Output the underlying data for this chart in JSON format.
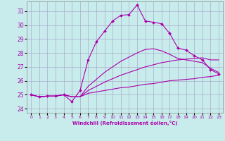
{
  "xlabel": "Windchill (Refroidissement éolien,°C)",
  "background_color": "#c8ecec",
  "grid_color": "#aaaacc",
  "line_color": "#aa00aa",
  "xlim": [
    -0.5,
    23.5
  ],
  "ylim": [
    23.7,
    31.7
  ],
  "yticks": [
    24,
    25,
    26,
    27,
    28,
    29,
    30,
    31
  ],
  "xticks": [
    0,
    1,
    2,
    3,
    4,
    5,
    6,
    7,
    8,
    9,
    10,
    11,
    12,
    13,
    14,
    15,
    16,
    17,
    18,
    19,
    20,
    21,
    22,
    23
  ],
  "series": [
    {
      "x": [
        0,
        1,
        2,
        3,
        4,
        5,
        6,
        7,
        8,
        9,
        10,
        11,
        12,
        13,
        14,
        15,
        16,
        17,
        18,
        19,
        20,
        21,
        22,
        23
      ],
      "y": [
        25.0,
        24.85,
        24.9,
        24.9,
        25.0,
        24.85,
        24.85,
        25.1,
        25.2,
        25.3,
        25.4,
        25.5,
        25.55,
        25.65,
        25.75,
        25.8,
        25.9,
        26.0,
        26.05,
        26.1,
        26.15,
        26.25,
        26.3,
        26.4
      ],
      "has_markers": false,
      "lw": 0.8
    },
    {
      "x": [
        0,
        1,
        2,
        3,
        4,
        5,
        6,
        7,
        8,
        9,
        10,
        11,
        12,
        13,
        14,
        15,
        16,
        17,
        18,
        19,
        20,
        21,
        22,
        23
      ],
      "y": [
        25.0,
        24.85,
        24.9,
        24.9,
        25.0,
        24.85,
        24.85,
        25.3,
        25.6,
        25.9,
        26.15,
        26.4,
        26.6,
        26.8,
        27.0,
        27.15,
        27.3,
        27.4,
        27.5,
        27.55,
        27.6,
        27.65,
        27.5,
        27.5
      ],
      "has_markers": false,
      "lw": 0.8
    },
    {
      "x": [
        0,
        1,
        2,
        3,
        4,
        5,
        6,
        7,
        8,
        9,
        10,
        11,
        12,
        13,
        14,
        15,
        16,
        17,
        18,
        19,
        20,
        21,
        22,
        23
      ],
      "y": [
        25.0,
        24.85,
        24.9,
        24.9,
        25.0,
        24.5,
        25.3,
        27.5,
        28.8,
        29.55,
        30.3,
        30.7,
        30.75,
        31.45,
        30.3,
        30.2,
        30.1,
        29.4,
        28.35,
        28.2,
        27.8,
        27.5,
        26.8,
        26.5
      ],
      "has_markers": true,
      "lw": 0.8
    },
    {
      "x": [
        0,
        1,
        2,
        3,
        4,
        5,
        6,
        7,
        8,
        9,
        10,
        11,
        12,
        13,
        14,
        15,
        16,
        17,
        18,
        19,
        20,
        21,
        22,
        23
      ],
      "y": [
        25.0,
        24.85,
        24.9,
        24.9,
        25.0,
        24.85,
        24.85,
        25.6,
        26.1,
        26.6,
        27.0,
        27.4,
        27.7,
        28.0,
        28.25,
        28.3,
        28.15,
        27.9,
        27.6,
        27.5,
        27.4,
        27.3,
        26.9,
        26.6
      ],
      "has_markers": false,
      "lw": 0.8
    }
  ]
}
